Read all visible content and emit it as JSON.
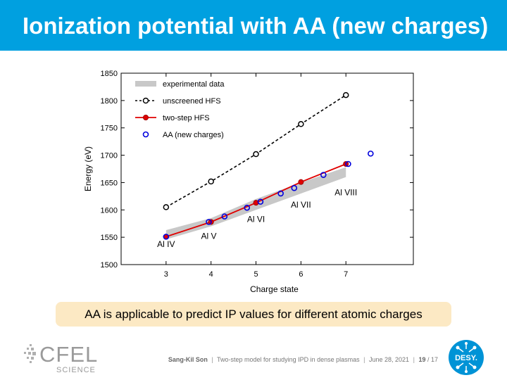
{
  "slide": {
    "title": "Ionization potential with AA (new charges)",
    "callout": "AA is applicable to predict IP values for different atomic charges"
  },
  "footer": {
    "author": "Sang-Kil Son",
    "talk": "Two-step model for studying IPD in dense plasmas",
    "date": "June 28, 2021",
    "page": "19",
    "total": "/ 17"
  },
  "logos": {
    "cfel_text": "CFEL",
    "cfel_sub": "SCIENCE",
    "desy_text": "DESY."
  },
  "colors": {
    "title_bar": "#00a0e0",
    "callout_bg": "#fce9c4",
    "band": "#c8c8c8",
    "unscreened": "#000000",
    "two_step": "#e00000",
    "aa_marker": "#0000dd"
  },
  "chart_data": {
    "type": "line",
    "xlabel": "Charge state",
    "ylabel": "Energy (eV)",
    "xlim": [
      2,
      8.5
    ],
    "ylim": [
      1500,
      1850
    ],
    "xticks": [
      3,
      4,
      5,
      6,
      7
    ],
    "yticks": [
      1500,
      1550,
      1600,
      1650,
      1700,
      1750,
      1800,
      1850
    ],
    "ytick_labels": [
      "1500",
      "1550",
      "1600",
      "1650",
      "1700",
      "1750",
      "1800",
      "1850"
    ],
    "grid": false,
    "legend_position": "top-left",
    "legend": [
      {
        "label": "experimental data",
        "style": "band"
      },
      {
        "label": "unscreened HFS",
        "style": "dashed-circle"
      },
      {
        "label": "two-step HFS",
        "style": "red-line-circle"
      },
      {
        "label": "AA (new charges)",
        "style": "blue-circle"
      }
    ],
    "experimental_band": {
      "name": "experimental data",
      "x": [
        3,
        4,
        5,
        6,
        7
      ],
      "lower": [
        1546,
        1570,
        1600,
        1630,
        1660
      ],
      "upper": [
        1563,
        1585,
        1620,
        1650,
        1678
      ]
    },
    "series": [
      {
        "name": "unscreened HFS",
        "style": "dashed",
        "x": [
          3,
          4,
          5,
          6,
          7
        ],
        "y": [
          1605,
          1652,
          1702,
          1757,
          1810
        ]
      },
      {
        "name": "two-step HFS",
        "style": "solid",
        "x": [
          3,
          4,
          5,
          6,
          7
        ],
        "y": [
          1551,
          1578,
          1613,
          1651,
          1684
        ]
      },
      {
        "name": "AA (new charges)",
        "style": "markers",
        "x": [
          3,
          3.95,
          4.3,
          4.8,
          5.1,
          5.55,
          5.85,
          6.5,
          7.05,
          7.55
        ],
        "y": [
          1551,
          1578,
          1588,
          1604,
          1615,
          1630,
          1640,
          1664,
          1684,
          1703
        ]
      }
    ],
    "annotations": [
      {
        "text": "Al IV",
        "x": 3,
        "y": 1532
      },
      {
        "text": "Al V",
        "x": 3.95,
        "y": 1547
      },
      {
        "text": "Al VI",
        "x": 5,
        "y": 1578
      },
      {
        "text": "Al VII",
        "x": 6,
        "y": 1604
      },
      {
        "text": "Al VIII",
        "x": 7,
        "y": 1627
      }
    ]
  }
}
